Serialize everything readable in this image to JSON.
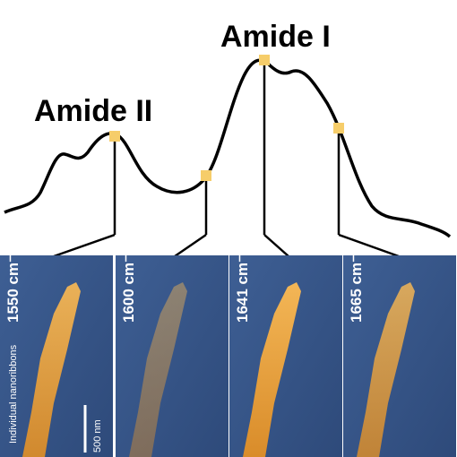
{
  "labels": {
    "amide_i": "Amide I",
    "amide_ii": "Amide II"
  },
  "panels": [
    {
      "label": "1550 cm⁻¹"
    },
    {
      "label": "1600 cm⁻¹"
    },
    {
      "label": "1641 cm⁻¹"
    },
    {
      "label": "1665 cm⁻¹"
    }
  ],
  "annotations": {
    "nanoribbons": "Individual nanoribbons",
    "scale_bar": "500 nm"
  }
}
